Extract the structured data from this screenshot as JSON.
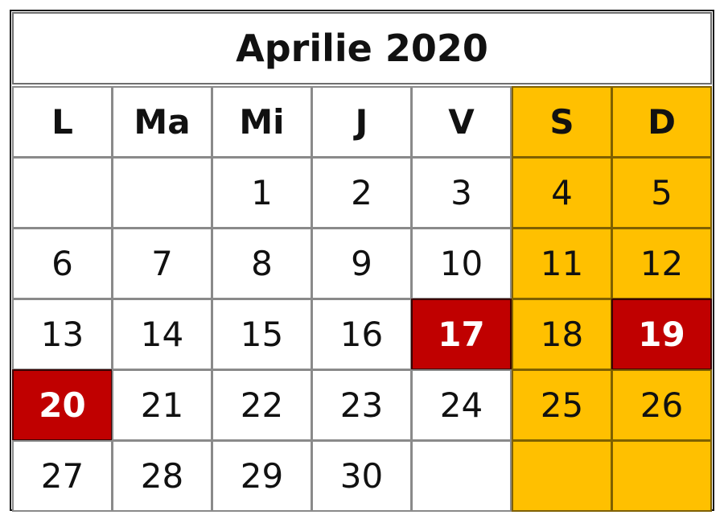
{
  "title": "Aprilie 2020",
  "colors": {
    "weekend": "#ffc000",
    "holiday": "#c00000"
  },
  "weekdays": [
    "L",
    "Ma",
    "Mi",
    "J",
    "V",
    "S",
    "D"
  ],
  "weeks": [
    [
      "",
      "",
      "1",
      "2",
      "3",
      "4",
      "5"
    ],
    [
      "6",
      "7",
      "8",
      "9",
      "10",
      "11",
      "12"
    ],
    [
      "13",
      "14",
      "15",
      "16",
      "17",
      "18",
      "19"
    ],
    [
      "20",
      "21",
      "22",
      "23",
      "24",
      "25",
      "26"
    ],
    [
      "27",
      "28",
      "29",
      "30",
      "",
      "",
      ""
    ]
  ],
  "holidays": [
    "17",
    "19",
    "20"
  ]
}
